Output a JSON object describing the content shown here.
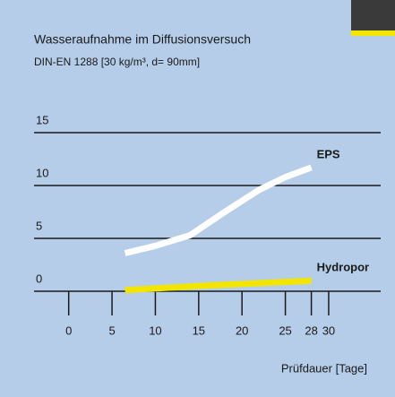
{
  "chart_data": {
    "type": "line",
    "title": "Wasseraufnahme im Diffusionsversuch",
    "subtitle": "DIN-EN 1288 [30 kg/m³, d= 90mm]",
    "x_label": "Prüfdauer [Tage]",
    "xlim": [
      -4,
      36
    ],
    "xticks": [
      0,
      5,
      10,
      15,
      20,
      25,
      28,
      30
    ],
    "ylim": [
      0,
      15
    ],
    "yticks": [
      0,
      5,
      10,
      15
    ],
    "grid": true,
    "series": [
      {
        "name": "EPS",
        "color": "#ffffff",
        "x": [
          6.5,
          10,
          14,
          18,
          22,
          25,
          28
        ],
        "values": [
          3.6,
          4.3,
          5.3,
          7.5,
          9.6,
          10.8,
          11.7
        ]
      },
      {
        "name": "Hydropor",
        "color": "#f2e600",
        "x": [
          6.5,
          15,
          28
        ],
        "values": [
          0.1,
          0.5,
          1.0
        ]
      }
    ]
  }
}
